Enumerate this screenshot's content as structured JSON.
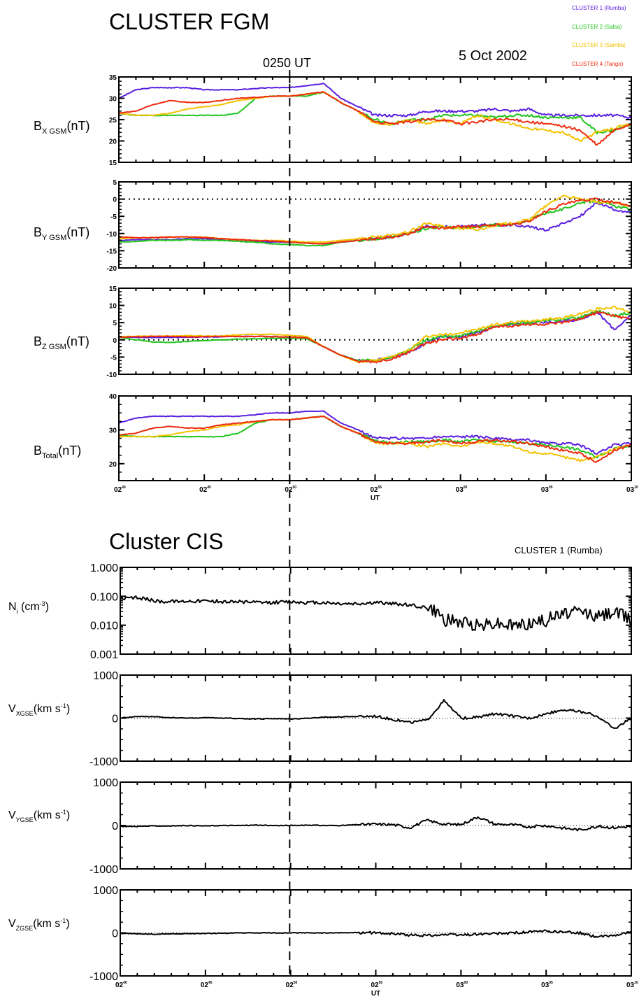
{
  "fgm": {
    "title": "CLUSTER FGM",
    "date": "5 Oct 2002",
    "event_label": "0250 UT",
    "legend": [
      {
        "label": "CLUSTER 1 (Rumba)",
        "color": "#5a1fe0"
      },
      {
        "label": "CLUSTER 2 (Salsa)",
        "color": "#22c41e"
      },
      {
        "label": "CLUSTER 3 (Samba)",
        "color": "#f2c300"
      },
      {
        "label": "CLUSTER 4 (Tango)",
        "color": "#ee2a0e"
      }
    ]
  },
  "cis": {
    "title": "Cluster CIS",
    "spacecraft": "CLUSTER 1 (Rumba)"
  },
  "time_axis": {
    "start_min": 0,
    "end_min": 30,
    "ticks": [
      {
        "min": 0,
        "main": "02",
        "sup": "40"
      },
      {
        "min": 5,
        "main": "02",
        "sup": "45"
      },
      {
        "min": 10,
        "main": "02",
        "sup": "50"
      },
      {
        "min": 15,
        "main": "02",
        "sup": "55"
      },
      {
        "min": 20,
        "main": "03",
        "sup": "00"
      },
      {
        "min": 25,
        "main": "03",
        "sup": "05"
      },
      {
        "min": 30,
        "main": "03",
        "sup": "10"
      }
    ],
    "xlabel": "UT"
  },
  "chart_data": [
    {
      "type": "line",
      "id": "bx",
      "ylabel": {
        "main": "B",
        "sub": "X GSM",
        "tail": "(nT)"
      },
      "ylim": [
        15,
        35
      ],
      "yticks": [
        "15",
        "20",
        "25",
        "30",
        "35"
      ],
      "x": [
        0,
        1,
        2,
        3,
        4,
        5,
        6,
        7,
        8,
        9,
        10,
        11,
        12,
        13,
        14,
        15,
        16,
        17,
        18,
        19,
        20,
        21,
        22,
        23,
        24,
        25,
        26,
        27,
        28,
        29,
        30
      ],
      "series": [
        {
          "color": "#5a1fe0",
          "values": [
            30,
            32,
            32.5,
            32.5,
            32.5,
            32,
            32,
            32,
            32.3,
            32.5,
            32.5,
            33,
            33.5,
            30,
            28,
            26,
            26,
            26,
            27,
            27,
            27,
            27,
            27.5,
            27,
            27.5,
            26,
            26,
            26,
            26,
            26,
            25.5
          ]
        },
        {
          "color": "#22c41e",
          "values": [
            26.5,
            26,
            26,
            26,
            26,
            26,
            26,
            26.5,
            30,
            30.5,
            30.5,
            30.5,
            31.5,
            29,
            27,
            25,
            24,
            25,
            25,
            26,
            26,
            26,
            25.5,
            26,
            26,
            25.5,
            25.5,
            25.5,
            22,
            22.5,
            24
          ]
        },
        {
          "color": "#f2c300",
          "values": [
            26.5,
            26,
            26,
            26.5,
            27.5,
            28,
            28.5,
            29.5,
            30,
            30.5,
            30.5,
            31,
            31.5,
            29,
            27,
            24,
            24,
            25,
            24,
            25,
            24,
            26,
            25,
            24,
            23,
            22.5,
            22,
            20,
            22,
            23,
            24
          ]
        },
        {
          "color": "#ee2a0e",
          "values": [
            26.5,
            27,
            28.5,
            29.5,
            29,
            29,
            29.5,
            30,
            30.2,
            30.5,
            30.5,
            31,
            31.5,
            29,
            27,
            24.5,
            24,
            24.5,
            25,
            25,
            24,
            24.5,
            25,
            25,
            24.5,
            24,
            23.5,
            22.5,
            19,
            22.5,
            24
          ]
        }
      ],
      "zero_line": false
    },
    {
      "type": "line",
      "id": "by",
      "ylabel": {
        "main": "B",
        "sub": "Y GSM",
        "tail": "(nT)"
      },
      "ylim": [
        -20,
        5
      ],
      "yticks": [
        "-20",
        "-15",
        "-10",
        "-5",
        "0",
        "5"
      ],
      "x": [
        0,
        1,
        2,
        3,
        4,
        5,
        6,
        7,
        8,
        9,
        10,
        11,
        12,
        13,
        14,
        15,
        16,
        17,
        18,
        19,
        20,
        21,
        22,
        23,
        24,
        25,
        26,
        27,
        28,
        29,
        30
      ],
      "series": [
        {
          "color": "#5a1fe0",
          "values": [
            -12,
            -11.8,
            -11.8,
            -11.8,
            -11.5,
            -11.5,
            -11.8,
            -12,
            -12.2,
            -12.5,
            -12.5,
            -12.8,
            -13,
            -12.5,
            -12,
            -11.5,
            -11,
            -10,
            -8,
            -8,
            -8,
            -7.5,
            -7.5,
            -7.5,
            -8,
            -9,
            -7,
            -5,
            -1,
            -3,
            -4
          ]
        },
        {
          "color": "#22c41e",
          "values": [
            -12.5,
            -12.3,
            -12,
            -12,
            -11.8,
            -12,
            -12,
            -12.3,
            -12.5,
            -13,
            -13.2,
            -13.5,
            -13.5,
            -12.5,
            -12,
            -11.5,
            -11,
            -10,
            -8.5,
            -8,
            -8.5,
            -8,
            -7.5,
            -7.5,
            -6,
            -4,
            -3,
            -1,
            -0.5,
            -2,
            -3
          ]
        },
        {
          "color": "#f2c300",
          "values": [
            -11.5,
            -11.3,
            -11.2,
            -11,
            -11,
            -11,
            -11.5,
            -11.8,
            -12,
            -12,
            -12.2,
            -12.5,
            -12.5,
            -12,
            -11.5,
            -11,
            -10.5,
            -9.5,
            -7,
            -8,
            -8.5,
            -9,
            -7.5,
            -7,
            -6,
            -2,
            1,
            0,
            -1,
            -1,
            -2
          ]
        },
        {
          "color": "#ee2a0e",
          "values": [
            -11,
            -11.2,
            -11.2,
            -11,
            -11,
            -11.2,
            -11.5,
            -11.8,
            -12,
            -12.2,
            -12.5,
            -12.8,
            -13,
            -12.5,
            -12,
            -11.5,
            -11,
            -10,
            -8,
            -8.5,
            -8,
            -8,
            -7.5,
            -7.5,
            -6.5,
            -3.5,
            -1.5,
            -0.5,
            0,
            -1,
            -2
          ]
        }
      ],
      "zero_line": true
    },
    {
      "type": "line",
      "id": "bz",
      "ylabel": {
        "main": "B",
        "sub": "Z GSM",
        "tail": "(nT)"
      },
      "ylim": [
        -10,
        15
      ],
      "yticks": [
        "-10",
        "-5",
        "0",
        "5",
        "10",
        "15"
      ],
      "x": [
        0,
        1,
        2,
        3,
        4,
        5,
        6,
        7,
        8,
        9,
        10,
        11,
        12,
        13,
        14,
        15,
        16,
        17,
        18,
        19,
        20,
        21,
        22,
        23,
        24,
        25,
        26,
        27,
        28,
        29,
        30
      ],
      "series": [
        {
          "color": "#5a1fe0",
          "values": [
            0.8,
            0.7,
            0.7,
            0.7,
            0.8,
            0.8,
            0.9,
            1.0,
            1.0,
            1.0,
            0.8,
            0.6,
            -2,
            -4.5,
            -6,
            -6,
            -5,
            -3.5,
            -1,
            1,
            1,
            2,
            4,
            4.5,
            5,
            5,
            5.5,
            6,
            8,
            3,
            7
          ]
        },
        {
          "color": "#22c41e",
          "values": [
            0.8,
            0,
            -0.6,
            -0.8,
            -0.4,
            -0.2,
            0,
            0.2,
            0.3,
            0.5,
            0.5,
            0.3,
            -2,
            -4.5,
            -6,
            -6,
            -5,
            -3,
            0,
            1,
            1,
            2.5,
            4,
            4.5,
            5,
            5.5,
            6,
            6.5,
            8.5,
            7,
            8
          ]
        },
        {
          "color": "#f2c300",
          "values": [
            0.9,
            1.0,
            1.1,
            1.1,
            1.2,
            1.1,
            1.1,
            1.5,
            1.6,
            1.6,
            1.3,
            1.0,
            -2,
            -4.5,
            -6.5,
            -6,
            -5,
            -3,
            1,
            1.5,
            2,
            3,
            4.5,
            5,
            5.5,
            6,
            6.5,
            7.5,
            9,
            9.5,
            8
          ]
        },
        {
          "color": "#ee2a0e",
          "values": [
            0.8,
            0.9,
            1.0,
            1.0,
            0.9,
            0.9,
            1.0,
            1.0,
            1.0,
            0.9,
            0.8,
            0.6,
            -2,
            -4.5,
            -6.2,
            -6.5,
            -5.5,
            -3.5,
            -1,
            0,
            0.5,
            1.5,
            4,
            4,
            4.5,
            4.5,
            5,
            6,
            8,
            7,
            6
          ]
        }
      ],
      "zero_line": true
    },
    {
      "type": "line",
      "id": "bt",
      "ylabel": {
        "main": "B",
        "sub": "Total",
        "tail": "(nT)"
      },
      "ylim": [
        15,
        40
      ],
      "yticks": [
        "20",
        "30",
        "40"
      ],
      "x": [
        0,
        1,
        2,
        3,
        4,
        5,
        6,
        7,
        8,
        9,
        10,
        11,
        12,
        13,
        14,
        15,
        16,
        17,
        18,
        19,
        20,
        21,
        22,
        23,
        24,
        25,
        26,
        27,
        28,
        29,
        30
      ],
      "series": [
        {
          "color": "#5a1fe0",
          "values": [
            32,
            33.5,
            34,
            34,
            34,
            34,
            34,
            34,
            34.5,
            35,
            35,
            35.5,
            35.5,
            32,
            30,
            27.5,
            27.5,
            27.5,
            27.5,
            28,
            28,
            28,
            27.5,
            27,
            27,
            26,
            26,
            25.5,
            23,
            25.5,
            26
          ]
        },
        {
          "color": "#22c41e",
          "values": [
            28.5,
            28,
            28,
            28,
            28,
            28,
            28,
            29,
            32,
            33,
            33,
            33.5,
            34,
            31,
            29,
            27,
            26,
            26.5,
            26.5,
            27,
            26.5,
            27,
            26.5,
            26.5,
            26,
            25.5,
            25,
            24,
            22,
            24.5,
            25.5
          ]
        },
        {
          "color": "#f2c300",
          "values": [
            28,
            28,
            28,
            28.5,
            29.5,
            30,
            31,
            31.5,
            32.5,
            33,
            33,
            33.5,
            34,
            31,
            29,
            26,
            26,
            26,
            25,
            26,
            25,
            26.5,
            26,
            25,
            23.5,
            23,
            22,
            21,
            22,
            24.5,
            25.5
          ]
        },
        {
          "color": "#ee2a0e",
          "values": [
            28.5,
            29,
            30.5,
            31,
            30.5,
            30.5,
            31.5,
            32,
            32.5,
            33,
            33,
            33.5,
            34,
            31,
            29,
            26.5,
            26,
            26,
            26.5,
            27,
            26,
            26.5,
            27,
            26.5,
            26,
            25,
            24,
            23,
            20.5,
            24,
            25.5
          ]
        }
      ],
      "zero_line": false
    },
    {
      "type": "line",
      "id": "ni",
      "ylabel": {
        "main": "N",
        "sub": "i",
        "tail": " (cm",
        "sup": "-3",
        "tail2": ")"
      },
      "scale": "log",
      "ylim": [
        0.001,
        1.0
      ],
      "yticks": [
        "0.001",
        "0.010",
        "0.100",
        "1.000"
      ],
      "x": [
        0,
        1,
        2,
        3,
        4,
        5,
        6,
        7,
        8,
        9,
        10,
        11,
        12,
        13,
        14,
        15,
        16,
        17,
        18,
        19,
        20,
        21,
        22,
        23,
        24,
        25,
        26,
        27,
        28,
        29,
        30
      ],
      "series": [
        {
          "color": "#000000",
          "values": [
            0.08,
            0.09,
            0.07,
            0.065,
            0.07,
            0.07,
            0.065,
            0.065,
            0.06,
            0.06,
            0.065,
            0.06,
            0.06,
            0.055,
            0.055,
            0.06,
            0.055,
            0.05,
            0.04,
            0.015,
            0.012,
            0.01,
            0.012,
            0.01,
            0.012,
            0.015,
            0.025,
            0.03,
            0.02,
            0.03,
            0.015
          ]
        }
      ],
      "zero_line": false
    },
    {
      "type": "line",
      "id": "vx",
      "ylabel": {
        "main": "V",
        "sub": "XGSE",
        "tail": "(km s",
        "sup": "-1",
        "tail2": ")"
      },
      "ylim": [
        -1000,
        1000
      ],
      "yticks": [
        "-1000",
        "0",
        "1000"
      ],
      "x": [
        0,
        1,
        2,
        3,
        4,
        5,
        6,
        7,
        8,
        9,
        10,
        11,
        12,
        13,
        14,
        15,
        16,
        17,
        18,
        19,
        20,
        21,
        22,
        23,
        24,
        25,
        26,
        27,
        28,
        29,
        30
      ],
      "series": [
        {
          "color": "#000000",
          "values": [
            0,
            40,
            30,
            10,
            0,
            10,
            0,
            -10,
            -20,
            -10,
            -20,
            0,
            20,
            30,
            40,
            50,
            -30,
            -100,
            -50,
            400,
            0,
            20,
            100,
            50,
            0,
            100,
            200,
            150,
            50,
            -250,
            0
          ]
        }
      ],
      "zero_line": true
    },
    {
      "type": "line",
      "id": "vy",
      "ylabel": {
        "main": "V",
        "sub": "YGSE",
        "tail": "(km s",
        "sup": "-1",
        "tail2": ")"
      },
      "ylim": [
        -1000,
        1000
      ],
      "yticks": [
        "-1000",
        "0",
        "1000"
      ],
      "x": [
        0,
        1,
        2,
        3,
        4,
        5,
        6,
        7,
        8,
        9,
        10,
        11,
        12,
        13,
        14,
        15,
        16,
        17,
        18,
        19,
        20,
        21,
        22,
        23,
        24,
        25,
        26,
        27,
        28,
        29,
        30
      ],
      "series": [
        {
          "color": "#000000",
          "values": [
            -20,
            -20,
            -10,
            -10,
            0,
            -10,
            0,
            0,
            10,
            0,
            0,
            10,
            0,
            0,
            20,
            30,
            20,
            -50,
            120,
            30,
            20,
            200,
            30,
            20,
            -30,
            0,
            -60,
            -100,
            -20,
            -50,
            -20
          ]
        }
      ],
      "zero_line": true
    },
    {
      "type": "line",
      "id": "vz",
      "ylabel": {
        "main": "V",
        "sub": "ZGSE",
        "tail": "(km s",
        "sup": "-1",
        "tail2": ")"
      },
      "ylim": [
        -1000,
        1000
      ],
      "yticks": [
        "-1000",
        "0",
        "1000"
      ],
      "x": [
        0,
        1,
        2,
        3,
        4,
        5,
        6,
        7,
        8,
        9,
        10,
        11,
        12,
        13,
        14,
        15,
        16,
        17,
        18,
        19,
        20,
        21,
        22,
        23,
        24,
        25,
        26,
        27,
        28,
        29,
        30
      ],
      "series": [
        {
          "color": "#000000",
          "values": [
            -10,
            -20,
            -30,
            -20,
            -20,
            -10,
            -10,
            0,
            0,
            0,
            0,
            0,
            0,
            0,
            10,
            0,
            -20,
            -50,
            -60,
            -40,
            -50,
            -30,
            -20,
            0,
            20,
            40,
            20,
            0,
            -100,
            -50,
            20
          ]
        }
      ],
      "zero_line": true
    }
  ]
}
